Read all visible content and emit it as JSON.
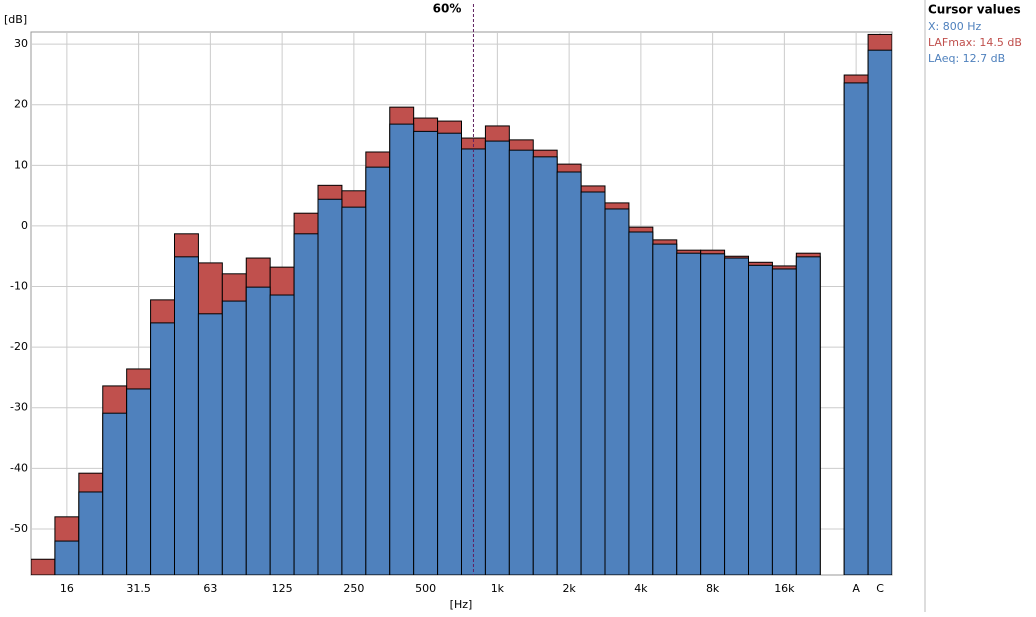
{
  "chart_data": {
    "type": "bar",
    "title": "60%",
    "y_label": "[dB]",
    "x_label": "[Hz]",
    "categories": [
      null,
      "16",
      null,
      null,
      "31.5",
      null,
      null,
      "63",
      null,
      null,
      "125",
      null,
      null,
      "250",
      null,
      null,
      "500",
      null,
      null,
      "1k",
      null,
      null,
      "2k",
      null,
      null,
      "4k",
      null,
      null,
      "8k",
      null,
      null,
      "16k",
      null,
      null,
      "A",
      "C"
    ],
    "series": [
      {
        "name": "LAFmax",
        "color": "#c0504d",
        "values": [
          -55,
          -48.0,
          -40.8,
          -26.4,
          -23.6,
          -12.2,
          -1.3,
          -6.1,
          -7.9,
          -5.3,
          -6.8,
          2.1,
          6.7,
          5.8,
          12.2,
          19.6,
          17.8,
          17.3,
          14.5,
          16.5,
          14.2,
          12.5,
          10.2,
          6.6,
          3.8,
          -0.2,
          -2.3,
          -4.0,
          -4.0,
          -5.0,
          -6.0,
          -6.6,
          -4.5,
          null,
          24.9,
          31.6
        ]
      },
      {
        "name": "LAeq",
        "color": "#4f81bd",
        "values": [
          -58,
          -52.0,
          -43.9,
          -30.9,
          -26.9,
          -16.0,
          -5.1,
          -14.5,
          -12.4,
          -10.1,
          -11.4,
          -1.3,
          4.4,
          3.1,
          9.7,
          16.8,
          15.6,
          15.3,
          12.7,
          14.0,
          12.5,
          11.4,
          8.9,
          5.6,
          2.8,
          -1.0,
          -3.0,
          -4.5,
          -4.6,
          -5.3,
          -6.5,
          -7.1,
          -5.1,
          null,
          23.6,
          29.0
        ]
      }
    ],
    "ylim": [
      -57.6,
      32
    ],
    "yticks": [
      -50,
      -40,
      -30,
      -20,
      -10,
      0,
      10,
      20,
      30
    ],
    "grid": true,
    "cursor_index": 18,
    "cursor": {
      "title": "Cursor values",
      "x": "X: 800 Hz",
      "lafmax": "LAFmax: 14.5 dB",
      "laeq": "LAeq: 12.7 dB"
    }
  }
}
